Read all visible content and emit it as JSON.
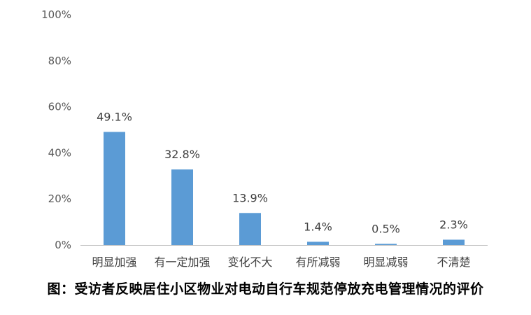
{
  "chart_data": {
    "type": "bar",
    "categories": [
      "明显加强",
      "有一定加强",
      "变化不大",
      "有所减弱",
      "明显减弱",
      "不清楚"
    ],
    "values": [
      49.1,
      32.8,
      13.9,
      1.4,
      0.5,
      2.3
    ],
    "data_labels": [
      "49.1%",
      "32.8%",
      "13.9%",
      "1.4%",
      "0.5%",
      "2.3%"
    ],
    "yticks": [
      "0%",
      "20%",
      "40%",
      "60%",
      "80%",
      "100%"
    ],
    "ylim": [
      0,
      100
    ],
    "grid": false,
    "legend": "none",
    "bar_color": "#5B9BD5",
    "axis_color": "#BFBFBF"
  },
  "caption": "图：受访者反映居住小区物业对电动自行车规范停放充电管理情况的评价"
}
